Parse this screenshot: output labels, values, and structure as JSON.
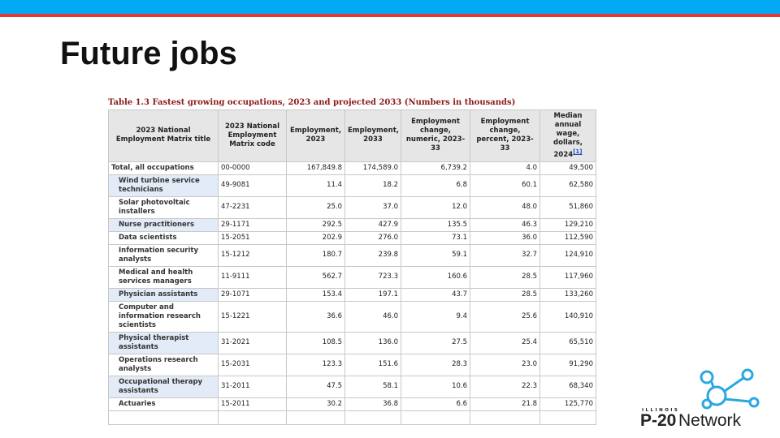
{
  "slide": {
    "title": "Future jobs"
  },
  "table": {
    "caption": "Table 1.3 Fastest growing occupations, 2023 and projected 2033 (Numbers in thousands)",
    "headers": [
      "2023 National Employment Matrix title",
      "2023 National Employment Matrix code",
      "Employment, 2023",
      "Employment, 2033",
      "Employment change, numeric, 2023-33",
      "Employment change, percent, 2023-33",
      "Median annual wage, dollars, 2024"
    ],
    "header_note": "[1]",
    "rows": [
      [
        "Total, all occupations",
        "00-0000",
        "167,849.8",
        "174,589.0",
        "6,739.2",
        "4.0",
        "49,500"
      ],
      [
        "Wind turbine service technicians",
        "49-9081",
        "11.4",
        "18.2",
        "6.8",
        "60.1",
        "62,580"
      ],
      [
        "Solar photovoltaic installers",
        "47-2231",
        "25.0",
        "37.0",
        "12.0",
        "48.0",
        "51,860"
      ],
      [
        "Nurse practitioners",
        "29-1171",
        "292.5",
        "427.9",
        "135.5",
        "46.3",
        "129,210"
      ],
      [
        "Data scientists",
        "15-2051",
        "202.9",
        "276.0",
        "73.1",
        "36.0",
        "112,590"
      ],
      [
        "Information security analysts",
        "15-1212",
        "180.7",
        "239.8",
        "59.1",
        "32.7",
        "124,910"
      ],
      [
        "Medical and health services managers",
        "11-9111",
        "562.7",
        "723.3",
        "160.6",
        "28.5",
        "117,960"
      ],
      [
        "Physician assistants",
        "29-1071",
        "153.4",
        "197.1",
        "43.7",
        "28.5",
        "133,260"
      ],
      [
        "Computer and information research scientists",
        "15-1221",
        "36.6",
        "46.0",
        "9.4",
        "25.6",
        "140,910"
      ],
      [
        "Physical therapist assistants",
        "31-2021",
        "108.5",
        "136.0",
        "27.5",
        "25.4",
        "65,510"
      ],
      [
        "Operations research analysts",
        "15-2031",
        "123.3",
        "151.6",
        "28.3",
        "23.0",
        "91,290"
      ],
      [
        "Occupational therapy assistants",
        "31-2011",
        "47.5",
        "58.1",
        "10.6",
        "22.3",
        "68,340"
      ],
      [
        "Actuaries",
        "15-2011",
        "30.2",
        "36.8",
        "6.6",
        "21.8",
        "125,770"
      ]
    ]
  },
  "logo": {
    "state": "ILLINOIS",
    "brand": "P-20",
    "network": "Network"
  }
}
